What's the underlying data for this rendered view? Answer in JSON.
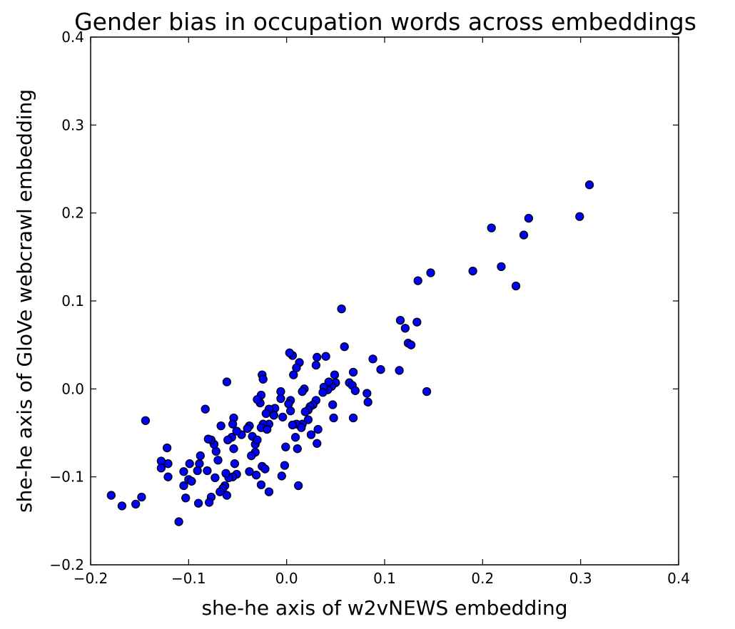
{
  "chart_data": {
    "type": "scatter",
    "title": "Gender bias in occupation words across embeddings",
    "xlabel": "she-he axis of w2vNEWS embedding",
    "ylabel": "she-he axis of GloVe webcrawl embedding",
    "xlim": [
      -0.2,
      0.4
    ],
    "ylim": [
      -0.2,
      0.4
    ],
    "xticks": [
      -0.2,
      -0.1,
      0.0,
      0.1,
      0.2,
      0.3,
      0.4
    ],
    "yticks": [
      -0.2,
      -0.1,
      0.0,
      0.1,
      0.2,
      0.3,
      0.4
    ],
    "xtick_labels": [
      "−0.2",
      "−0.1",
      "0.0",
      "0.1",
      "0.2",
      "0.3",
      "0.4"
    ],
    "ytick_labels": [
      "−0.2",
      "−0.1",
      "0.0",
      "0.1",
      "0.2",
      "0.3",
      "0.4"
    ],
    "grid": false,
    "marker_color": "#0000ff",
    "points": [
      [
        0.309,
        0.232
      ],
      [
        0.299,
        0.196
      ],
      [
        0.247,
        0.194
      ],
      [
        0.242,
        0.175
      ],
      [
        0.209,
        0.183
      ],
      [
        0.219,
        0.139
      ],
      [
        0.234,
        0.117
      ],
      [
        0.19,
        0.134
      ],
      [
        0.147,
        0.132
      ],
      [
        0.134,
        0.123
      ],
      [
        0.116,
        0.078
      ],
      [
        0.133,
        0.076
      ],
      [
        0.121,
        0.069
      ],
      [
        0.124,
        0.052
      ],
      [
        0.127,
        0.05
      ],
      [
        0.143,
        -0.003
      ],
      [
        0.115,
        0.021
      ],
      [
        0.096,
        0.022
      ],
      [
        0.088,
        0.034
      ],
      [
        0.082,
        -0.005
      ],
      [
        0.083,
        -0.015
      ],
      [
        0.056,
        0.091
      ],
      [
        0.059,
        0.048
      ],
      [
        0.068,
        0.019
      ],
      [
        0.064,
        0.007
      ],
      [
        0.067,
        0.004
      ],
      [
        0.07,
        -0.002
      ],
      [
        0.068,
        -0.033
      ],
      [
        0.049,
        0.016
      ],
      [
        0.05,
        0.007
      ],
      [
        0.046,
        0.003
      ],
      [
        0.043,
        0.008
      ],
      [
        0.042,
        -0.001
      ],
      [
        0.038,
        0.002
      ],
      [
        0.04,
        0.037
      ],
      [
        0.031,
        0.036
      ],
      [
        0.037,
        -0.004
      ],
      [
        0.047,
        -0.018
      ],
      [
        0.048,
        -0.033
      ],
      [
        0.03,
        0.027
      ],
      [
        0.03,
        -0.013
      ],
      [
        0.027,
        -0.018
      ],
      [
        0.032,
        -0.046
      ],
      [
        0.031,
        -0.062
      ],
      [
        0.024,
        -0.02
      ],
      [
        0.022,
        -0.024
      ],
      [
        0.019,
        -0.026
      ],
      [
        0.022,
        -0.035
      ],
      [
        0.025,
        -0.052
      ],
      [
        0.018,
        0.0
      ],
      [
        0.016,
        -0.003
      ],
      [
        0.016,
        -0.04
      ],
      [
        0.01,
        -0.04
      ],
      [
        0.013,
        0.03
      ],
      [
        0.01,
        0.024
      ],
      [
        0.007,
        0.016
      ],
      [
        0.006,
        0.038
      ],
      [
        0.003,
        0.041
      ],
      [
        0.004,
        -0.013
      ],
      [
        0.002,
        -0.017
      ],
      [
        0.004,
        -0.025
      ],
      [
        0.006,
        -0.041
      ],
      [
        0.009,
        -0.055
      ],
      [
        0.011,
        -0.068
      ],
      [
        0.015,
        -0.044
      ],
      [
        -0.001,
        -0.066
      ],
      [
        -0.006,
        -0.003
      ],
      [
        -0.006,
        -0.011
      ],
      [
        -0.004,
        -0.032
      ],
      [
        -0.002,
        -0.087
      ],
      [
        -0.005,
        -0.099
      ],
      [
        0.012,
        -0.11
      ],
      [
        -0.012,
        -0.022
      ],
      [
        -0.013,
        -0.03
      ],
      [
        -0.018,
        -0.023
      ],
      [
        -0.018,
        -0.04
      ],
      [
        -0.021,
        -0.028
      ],
      [
        -0.024,
        -0.04
      ],
      [
        -0.026,
        -0.044
      ],
      [
        -0.02,
        -0.046
      ],
      [
        -0.025,
        0.016
      ],
      [
        -0.024,
        0.011
      ],
      [
        -0.026,
        -0.007
      ],
      [
        -0.027,
        -0.016
      ],
      [
        -0.03,
        -0.012
      ],
      [
        -0.032,
        -0.063
      ],
      [
        -0.035,
        -0.054
      ],
      [
        -0.03,
        -0.058
      ],
      [
        -0.032,
        -0.072
      ],
      [
        -0.036,
        -0.076
      ],
      [
        -0.038,
        -0.094
      ],
      [
        -0.031,
        -0.098
      ],
      [
        -0.025,
        -0.088
      ],
      [
        -0.022,
        -0.091
      ],
      [
        -0.026,
        -0.109
      ],
      [
        -0.018,
        -0.117
      ],
      [
        -0.038,
        -0.042
      ],
      [
        -0.04,
        -0.045
      ],
      [
        -0.046,
        -0.052
      ],
      [
        -0.051,
        -0.048
      ],
      [
        -0.054,
        -0.033
      ],
      [
        -0.055,
        -0.04
      ],
      [
        -0.056,
        -0.055
      ],
      [
        -0.06,
        -0.058
      ],
      [
        -0.061,
        0.008
      ],
      [
        -0.067,
        -0.042
      ],
      [
        -0.054,
        -0.068
      ],
      [
        -0.053,
        -0.085
      ],
      [
        -0.051,
        -0.097
      ],
      [
        -0.055,
        -0.1
      ],
      [
        -0.059,
        -0.101
      ],
      [
        -0.062,
        -0.096
      ],
      [
        -0.063,
        -0.11
      ],
      [
        -0.065,
        -0.113
      ],
      [
        -0.061,
        -0.121
      ],
      [
        -0.068,
        -0.117
      ],
      [
        -0.07,
        -0.081
      ],
      [
        -0.072,
        -0.071
      ],
      [
        -0.074,
        -0.063
      ],
      [
        -0.077,
        -0.058
      ],
      [
        -0.08,
        -0.057
      ],
      [
        -0.081,
        -0.093
      ],
      [
        -0.073,
        -0.101
      ],
      [
        -0.083,
        -0.023
      ],
      [
        -0.077,
        -0.123
      ],
      [
        -0.079,
        -0.129
      ],
      [
        -0.088,
        -0.076
      ],
      [
        -0.089,
        -0.085
      ],
      [
        -0.091,
        -0.093
      ],
      [
        -0.099,
        -0.085
      ],
      [
        -0.1,
        -0.103
      ],
      [
        -0.097,
        -0.105
      ],
      [
        -0.105,
        -0.094
      ],
      [
        -0.105,
        -0.11
      ],
      [
        -0.103,
        -0.124
      ],
      [
        -0.11,
        -0.151
      ],
      [
        -0.09,
        -0.13
      ],
      [
        -0.121,
        -0.085
      ],
      [
        -0.122,
        -0.067
      ],
      [
        -0.121,
        -0.1
      ],
      [
        -0.128,
        -0.082
      ],
      [
        -0.128,
        -0.09
      ],
      [
        -0.144,
        -0.036
      ],
      [
        -0.148,
        -0.123
      ],
      [
        -0.154,
        -0.131
      ],
      [
        -0.168,
        -0.133
      ],
      [
        -0.179,
        -0.121
      ]
    ]
  }
}
